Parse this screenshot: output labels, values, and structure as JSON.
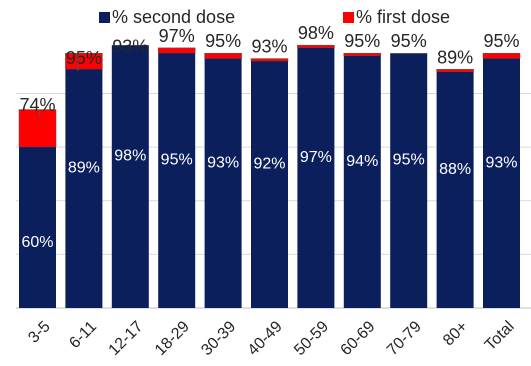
{
  "chart_data": {
    "type": "bar",
    "stacked": true,
    "categories": [
      "3-5",
      "6-11",
      "12-17",
      "18-29",
      "30-39",
      "40-49",
      "50-59",
      "60-69",
      "70-79",
      "80+",
      "Total"
    ],
    "series": [
      {
        "name": "% second dose",
        "color": "#0a1f5c",
        "values": [
          60,
          89,
          98,
          95,
          93,
          92,
          97,
          94,
          95,
          88,
          93
        ],
        "labels": [
          "60%",
          "89%",
          "98%",
          "95%",
          "93%",
          "92%",
          "97%",
          "94%",
          "95%",
          "88%",
          "93%"
        ]
      },
      {
        "name": "% first dose",
        "color": "#ff0000",
        "totals": [
          74,
          95,
          93,
          97,
          95,
          93,
          98,
          95,
          95,
          89,
          95
        ],
        "labels": [
          "74%",
          "95%",
          "93%",
          "97%",
          "95%",
          "93%",
          "98%",
          "95%",
          "95%",
          "89%",
          "95%"
        ]
      }
    ],
    "ylim": [
      0,
      100
    ],
    "grid": true,
    "legend_position": "top"
  }
}
